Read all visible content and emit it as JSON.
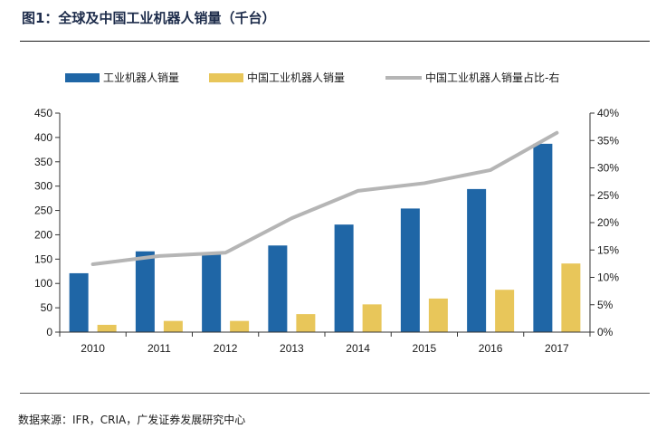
{
  "title": "图1：全球及中国工业机器人销量（千台）",
  "source": "数据来源：IFR，CRIA，广发证券发展研究中心",
  "colors": {
    "global_bar": "#1f66a6",
    "china_bar": "#e8c65a",
    "share_line": "#b5b5b5",
    "axis": "#333333"
  },
  "chart_data": {
    "type": "bar",
    "title": "全球及中国工业机器人销量（千台）",
    "categories": [
      "2010",
      "2011",
      "2012",
      "2013",
      "2014",
      "2015",
      "2016",
      "2017"
    ],
    "series": [
      {
        "name": "工业机器人销量",
        "type": "bar",
        "axis": "left",
        "values": [
          121,
          166,
          159,
          178,
          221,
          254,
          294,
          387
        ]
      },
      {
        "name": "中国工业机器人销量",
        "type": "bar",
        "axis": "left",
        "values": [
          15,
          23,
          23,
          37,
          57,
          69,
          87,
          141
        ]
      },
      {
        "name": "中国工业机器人销量占比-右",
        "type": "line",
        "axis": "right",
        "values": [
          12.4,
          13.9,
          14.5,
          20.8,
          25.8,
          27.2,
          29.6,
          36.4
        ]
      }
    ],
    "y_left": {
      "min": 0,
      "max": 450,
      "step": 50,
      "ticks": [
        "0",
        "50",
        "100",
        "150",
        "200",
        "250",
        "300",
        "350",
        "400",
        "450"
      ]
    },
    "y_right": {
      "min": 0,
      "max": 40,
      "step": 5,
      "unit": "%",
      "ticks": [
        "0%",
        "5%",
        "10%",
        "15%",
        "20%",
        "25%",
        "30%",
        "35%",
        "40%"
      ]
    },
    "legend_position": "top",
    "grid": false
  }
}
